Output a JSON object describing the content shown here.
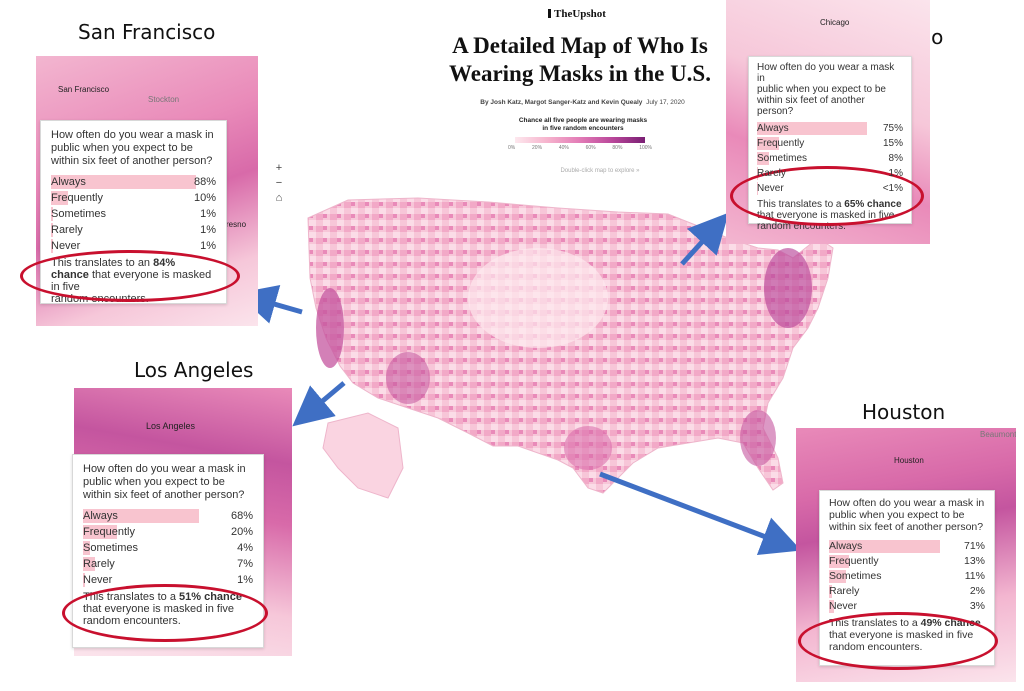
{
  "header": {
    "brand": "TheUpshot",
    "title_line1": "A Detailed Map of Who Is",
    "title_line2": "Wearing Masks in the U.S.",
    "byline_authors": "By Josh Katz, Margot Sanger-Katz and Kevin Quealy",
    "byline_date": "July 17, 2020",
    "legend_title_line1": "Chance all five people are wearing masks",
    "legend_title_line2": "in five random encounters",
    "legend_ticks": [
      "0%",
      "20%",
      "40%",
      "60%",
      "80%",
      "100%"
    ],
    "hint": "Double-click map to explore »"
  },
  "zoom": {
    "plus": "+",
    "minus": "−",
    "home": "⌂"
  },
  "question_lines": [
    "How often do you wear a mask in",
    "public when you expect to be",
    "within six feet of another person?"
  ],
  "colors": {
    "accent_ring": "#c8102e",
    "bar": "#f8c4cf",
    "arrow": "#3f6fc4"
  },
  "cities": [
    {
      "name": "San Francisco",
      "map_labels": [
        "San Francisco",
        "Stockton",
        "resno"
      ],
      "responses": [
        {
          "label": "Always",
          "value": "88%",
          "pct": 88
        },
        {
          "label": "Frequently",
          "value": "10%",
          "pct": 10
        },
        {
          "label": "Sometimes",
          "value": "1%",
          "pct": 1
        },
        {
          "label": "Rarely",
          "value": "1%",
          "pct": 1
        },
        {
          "label": "Never",
          "value": "1%",
          "pct": 1
        }
      ],
      "note_pre": "This translates to an ",
      "note_chance": "84% chance",
      "note_post1": " that everyone is masked in five",
      "note_post2": "random encounters."
    },
    {
      "name": "Chicago",
      "map_labels": [
        "Chicago"
      ],
      "responses": [
        {
          "label": "Always",
          "value": "75%",
          "pct": 75
        },
        {
          "label": "Frequently",
          "value": "15%",
          "pct": 15
        },
        {
          "label": "Sometimes",
          "value": "8%",
          "pct": 8
        },
        {
          "label": "Rarely",
          "value": "1%",
          "pct": 1
        },
        {
          "label": "Never",
          "value": "<1%",
          "pct": 0.5
        }
      ],
      "note_pre": "This translates to a ",
      "note_chance": "65% chance",
      "note_post1": " that everyone is masked in five",
      "note_post2": "random encounters."
    },
    {
      "name": "Los Angeles",
      "map_labels": [
        "Los Angeles"
      ],
      "responses": [
        {
          "label": "Always",
          "value": "68%",
          "pct": 68
        },
        {
          "label": "Frequently",
          "value": "20%",
          "pct": 20
        },
        {
          "label": "Sometimes",
          "value": "4%",
          "pct": 4
        },
        {
          "label": "Rarely",
          "value": "7%",
          "pct": 7
        },
        {
          "label": "Never",
          "value": "1%",
          "pct": 1
        }
      ],
      "note_pre": "This translates to a ",
      "note_chance": "51% chance",
      "note_post1": " that everyone is masked in five",
      "note_post2": "random encounters."
    },
    {
      "name": "Houston",
      "map_labels": [
        "Houston",
        "Beaumont"
      ],
      "responses": [
        {
          "label": "Always",
          "value": "71%",
          "pct": 71
        },
        {
          "label": "Frequently",
          "value": "13%",
          "pct": 13
        },
        {
          "label": "Sometimes",
          "value": "11%",
          "pct": 11
        },
        {
          "label": "Rarely",
          "value": "2%",
          "pct": 2
        },
        {
          "label": "Never",
          "value": "3%",
          "pct": 3
        }
      ],
      "note_pre": "This translates to a ",
      "note_chance": "49% chance",
      "note_post1": " that everyone is masked in five",
      "note_post2": "random encounters."
    }
  ]
}
